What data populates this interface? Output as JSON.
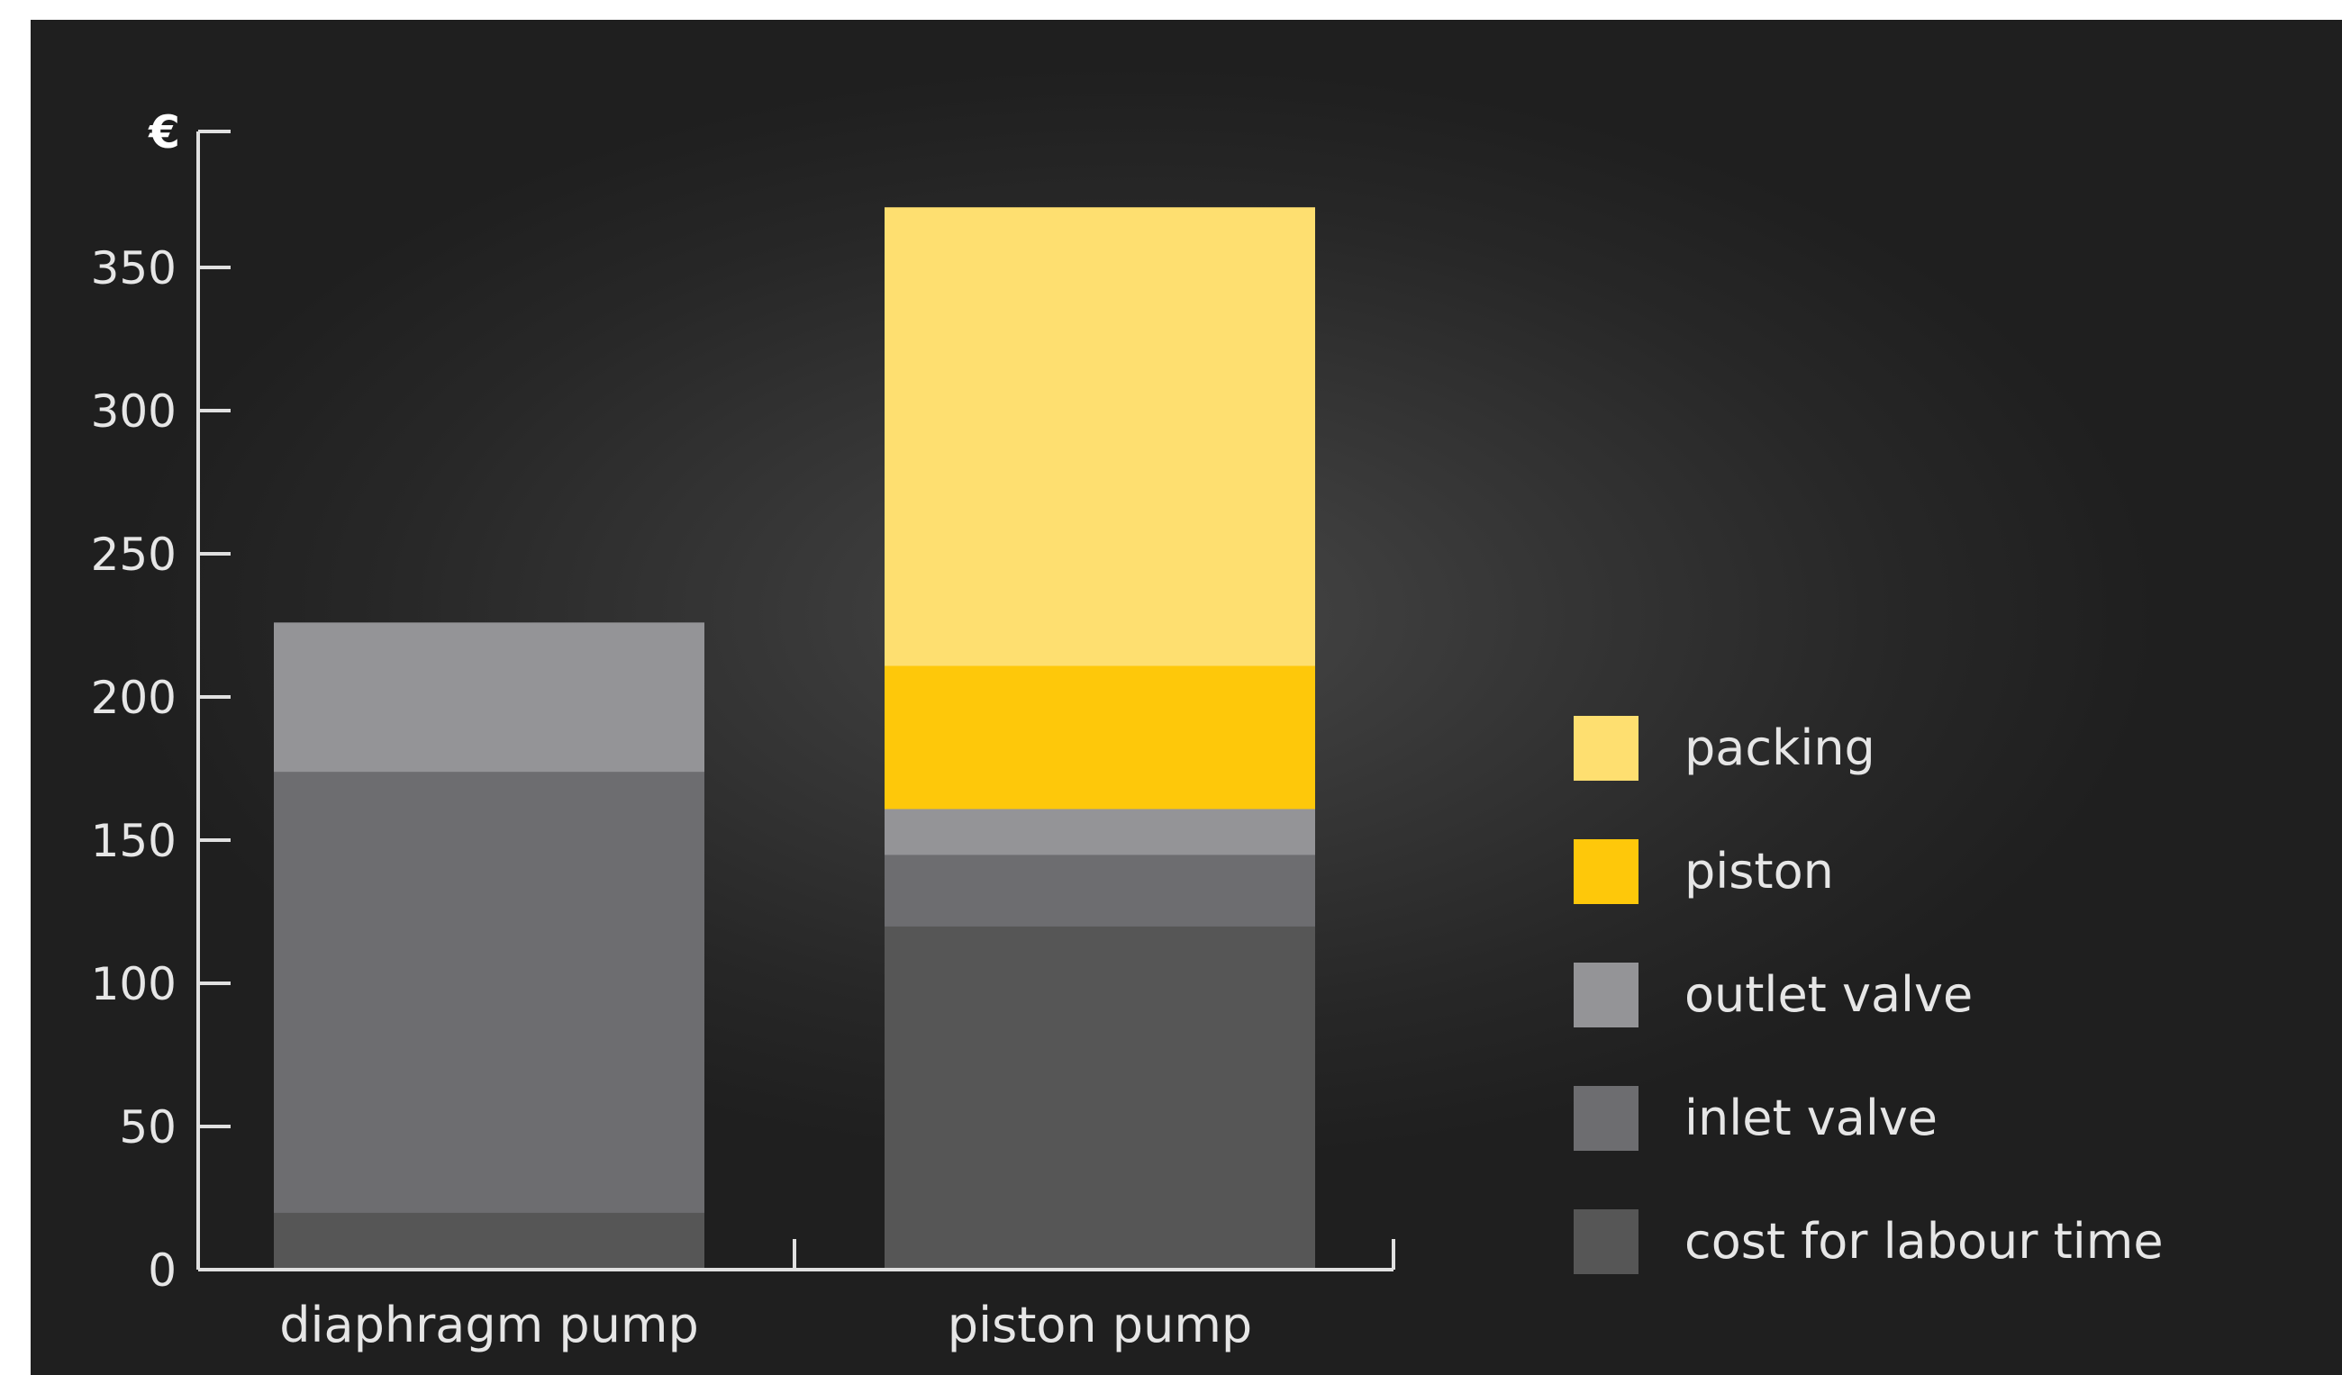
{
  "chart_data": {
    "type": "bar",
    "stacked": true,
    "title": "",
    "xlabel": "",
    "ylabel": "€",
    "ylim": [
      0,
      400
    ],
    "yticks": [
      0,
      50,
      100,
      150,
      200,
      250,
      300,
      350
    ],
    "grid": false,
    "legend_position": "right",
    "categories": [
      "diaphragm pump",
      "piston pump"
    ],
    "series": [
      {
        "name": "cost for labour time",
        "color": "#565656",
        "values": [
          20,
          120
        ]
      },
      {
        "name": "inlet valve",
        "color": "#6d6d70",
        "values": [
          154,
          25
        ]
      },
      {
        "name": "outlet valve",
        "color": "#949497",
        "values": [
          52,
          16
        ]
      },
      {
        "name": "piston",
        "color": "#fec80a",
        "values": [
          0,
          50
        ]
      },
      {
        "name": "packing",
        "color": "#fedf70",
        "values": [
          0,
          160
        ]
      }
    ]
  }
}
